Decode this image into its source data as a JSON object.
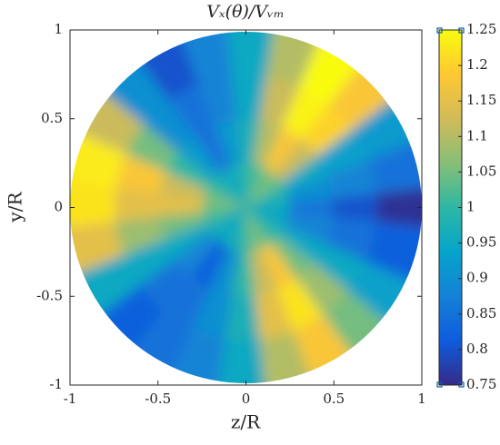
{
  "chart_data": {
    "type": "polar-contour",
    "title": "Vₓ(θ)/Vᵥₘ",
    "xlabel": "z/R",
    "ylabel": "y/R",
    "xlim": [
      -1,
      1
    ],
    "ylim": [
      -1,
      1
    ],
    "xticks": [
      -1,
      -0.5,
      0,
      0.5,
      1
    ],
    "yticks": [
      -1,
      -0.5,
      0,
      0.5,
      1
    ],
    "theta": [
      0,
      15,
      30,
      45,
      60,
      75,
      90,
      105,
      120,
      135,
      150,
      165,
      180,
      195,
      210,
      225,
      240,
      255,
      270,
      285,
      300,
      315,
      330,
      345
    ],
    "r": [
      0.125,
      0.375,
      0.625,
      0.875
    ],
    "values": [
      [
        0.95,
        0.85,
        0.8,
        0.76
      ],
      [
        0.97,
        0.9,
        0.88,
        0.85
      ],
      [
        1.0,
        0.95,
        0.93,
        0.92
      ],
      [
        1.05,
        1.12,
        1.2,
        1.18
      ],
      [
        1.05,
        1.18,
        1.24,
        1.25
      ],
      [
        1.02,
        1.1,
        1.12,
        1.1
      ],
      [
        1.0,
        0.97,
        0.95,
        0.95
      ],
      [
        0.97,
        0.92,
        0.88,
        0.88
      ],
      [
        0.95,
        0.85,
        0.85,
        0.8
      ],
      [
        0.97,
        0.92,
        0.9,
        0.9
      ],
      [
        1.0,
        1.0,
        1.05,
        1.12
      ],
      [
        1.05,
        1.12,
        1.18,
        1.23
      ],
      [
        1.05,
        1.15,
        1.15,
        1.22
      ],
      [
        1.02,
        1.05,
        1.08,
        1.15
      ],
      [
        0.98,
        0.95,
        0.95,
        0.95
      ],
      [
        0.95,
        0.88,
        0.85,
        0.82
      ],
      [
        0.95,
        0.82,
        0.85,
        0.85
      ],
      [
        0.97,
        0.9,
        0.9,
        0.88
      ],
      [
        1.0,
        1.0,
        0.97,
        0.95
      ],
      [
        1.05,
        1.12,
        1.15,
        1.1
      ],
      [
        1.05,
        1.18,
        1.22,
        1.18
      ],
      [
        1.0,
        1.05,
        1.08,
        1.05
      ],
      [
        0.97,
        0.95,
        0.95,
        0.93
      ],
      [
        0.95,
        0.88,
        0.85,
        0.82
      ]
    ],
    "clim": [
      0.75,
      1.25
    ],
    "cticks": [
      0.75,
      0.8,
      0.85,
      0.9,
      0.95,
      1,
      1.05,
      1.1,
      1.15,
      1.2,
      1.25
    ],
    "colormap": [
      "#352a87",
      "#0f5cdd",
      "#1481d6",
      "#06a4ca",
      "#2eb7a4",
      "#87bf77",
      "#d1bb59",
      "#fec832",
      "#f9fb0e"
    ]
  }
}
